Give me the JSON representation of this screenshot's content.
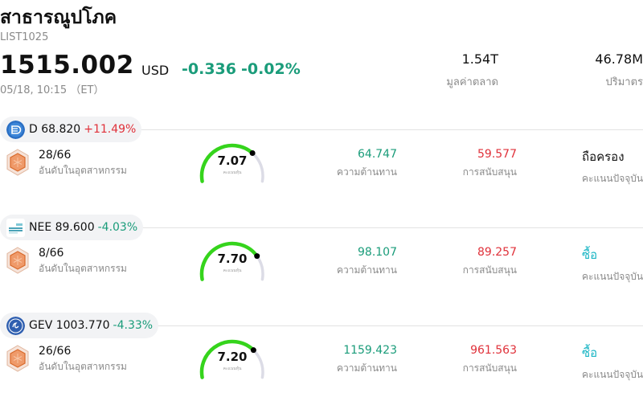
{
  "header": {
    "title": "สาธารณูปโภค",
    "code": "LIST1025",
    "price": "1515.002",
    "currency": "USD",
    "change": "-0.336",
    "change_pct": "-0.02%",
    "timestamp": "05/18, 10:15 （ET）"
  },
  "stats": [
    {
      "value": "1.54T",
      "label": "มูลค่าตลาด"
    },
    {
      "value": "46.78M",
      "label": "ปริมาตร"
    }
  ],
  "colors": {
    "up": "#e0313a",
    "down": "#1a9c7a",
    "buy": "#19b5c4",
    "gauge_fill": "#35d41c",
    "gauge_track": "#dcdce6"
  },
  "labels": {
    "rank": "อันดับในอุตสาหกรรม",
    "gauge_caption": "คะแนนหุ้น",
    "resistance": "ความต้านทาน",
    "support": "การสนับสนุน",
    "current_score": "คะแนนปัจจุบัน"
  },
  "stocks": [
    {
      "symbol": "D 68.820",
      "change_pct": "+11.49%",
      "direction": "up",
      "logo_icon": "dominion-logo-icon",
      "rank": "28/66",
      "score": "7.07",
      "score_value": 7.07,
      "resistance": "64.747",
      "support": "59.577",
      "rating": "ถือครอง",
      "rating_type": "hold"
    },
    {
      "symbol": "NEE 89.600",
      "change_pct": "-4.03%",
      "direction": "down",
      "logo_icon": "nextera-logo-icon",
      "rank": "8/66",
      "score": "7.70",
      "score_value": 7.7,
      "resistance": "98.107",
      "support": "89.257",
      "rating": "ซื้อ",
      "rating_type": "buy"
    },
    {
      "symbol": "GEV 1003.770",
      "change_pct": "-4.33%",
      "direction": "down",
      "logo_icon": "ge-vernova-logo-icon",
      "rank": "26/66",
      "score": "7.20",
      "score_value": 7.2,
      "resistance": "1159.423",
      "support": "961.563",
      "rating": "ซื้อ",
      "rating_type": "buy"
    }
  ]
}
